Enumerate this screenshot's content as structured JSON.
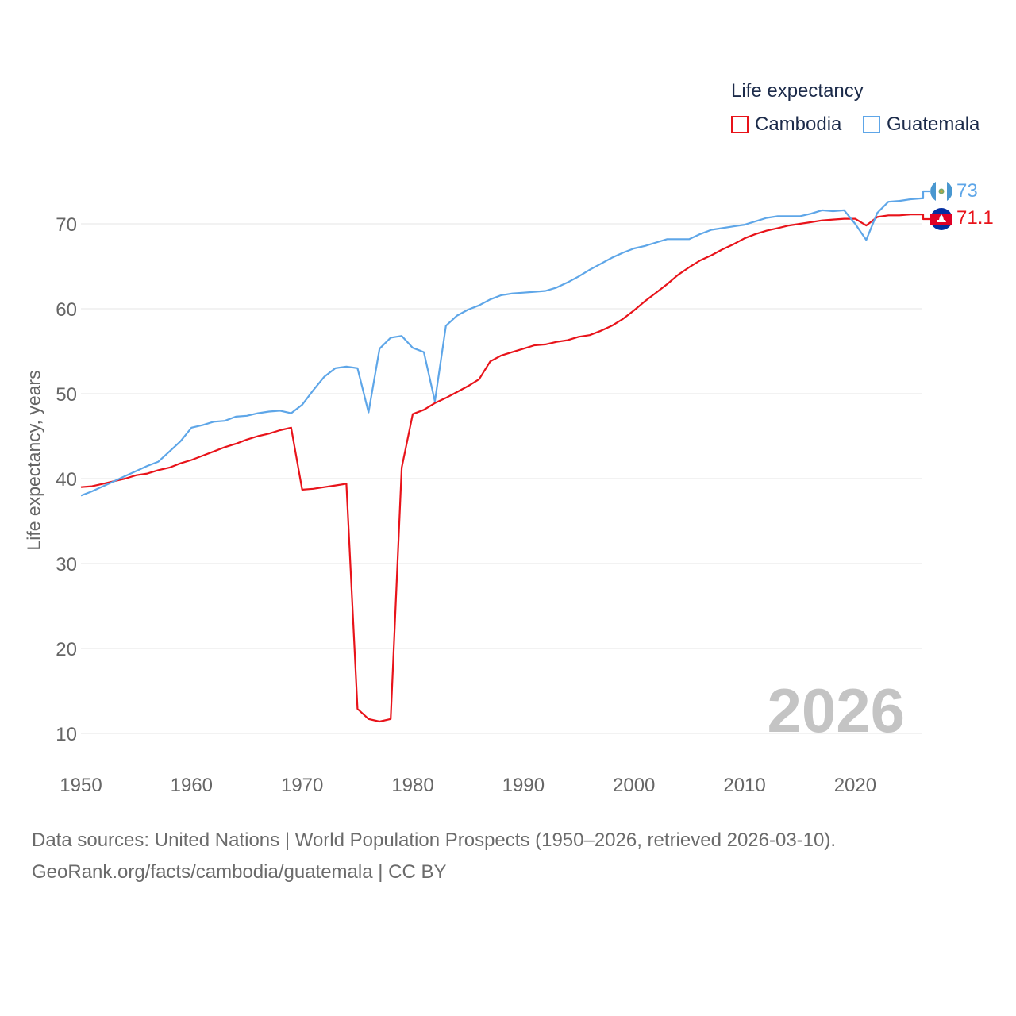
{
  "legend": {
    "title": "Life expectancy",
    "items": [
      {
        "label": "Cambodia",
        "color": "#e8131a"
      },
      {
        "label": "Guatemala",
        "color": "#5ea6e8"
      }
    ]
  },
  "footer": {
    "line1": "Data sources: United Nations | World Population Prospects (1950–2026, retrieved 2026-03-10).",
    "line2": "GeoRank.org/facts/cambodia/guatemala | CC BY"
  },
  "year_display": "2026",
  "end_labels": {
    "cambodia": "71.1",
    "guatemala": "73"
  },
  "chart_data": {
    "type": "line",
    "title": "Life expectancy",
    "xlabel": "",
    "ylabel": "Life expectancy, years",
    "xlim": [
      1950,
      2026
    ],
    "ylim": [
      6,
      76
    ],
    "x_ticks": [
      1950,
      1960,
      1970,
      1980,
      1990,
      2000,
      2010,
      2020
    ],
    "y_ticks": [
      10,
      20,
      30,
      40,
      50,
      60,
      70
    ],
    "x": [
      1950,
      1951,
      1952,
      1953,
      1954,
      1955,
      1956,
      1957,
      1958,
      1959,
      1960,
      1961,
      1962,
      1963,
      1964,
      1965,
      1966,
      1967,
      1968,
      1969,
      1970,
      1971,
      1972,
      1973,
      1974,
      1975,
      1976,
      1977,
      1978,
      1979,
      1980,
      1981,
      1982,
      1983,
      1984,
      1985,
      1986,
      1987,
      1988,
      1989,
      1990,
      1991,
      1992,
      1993,
      1994,
      1995,
      1996,
      1997,
      1998,
      1999,
      2000,
      2001,
      2002,
      2003,
      2004,
      2005,
      2006,
      2007,
      2008,
      2009,
      2010,
      2011,
      2012,
      2013,
      2014,
      2015,
      2016,
      2017,
      2018,
      2019,
      2020,
      2021,
      2022,
      2023,
      2024,
      2025,
      2026
    ],
    "series": [
      {
        "name": "Cambodia",
        "color": "#e8131a",
        "values": [
          39.0,
          39.1,
          39.4,
          39.7,
          40.0,
          40.4,
          40.6,
          41.0,
          41.3,
          41.8,
          42.2,
          42.7,
          43.2,
          43.7,
          44.1,
          44.6,
          45.0,
          45.3,
          45.7,
          46.0,
          38.7,
          38.8,
          39.0,
          39.2,
          39.4,
          12.9,
          11.7,
          11.4,
          11.7,
          41.3,
          47.6,
          48.1,
          48.9,
          49.5,
          50.2,
          50.9,
          51.7,
          53.8,
          54.5,
          54.9,
          55.3,
          55.7,
          55.8,
          56.1,
          56.3,
          56.7,
          56.9,
          57.4,
          58.0,
          58.8,
          59.8,
          60.9,
          61.9,
          62.9,
          64.0,
          64.9,
          65.7,
          66.3,
          67.0,
          67.6,
          68.3,
          68.8,
          69.2,
          69.5,
          69.8,
          70.0,
          70.2,
          70.4,
          70.5,
          70.6,
          70.6,
          69.8,
          70.8,
          71.0,
          71.0,
          71.1,
          71.1
        ]
      },
      {
        "name": "Guatemala",
        "color": "#5ea6e8",
        "values": [
          38.0,
          38.5,
          39.1,
          39.7,
          40.3,
          40.9,
          41.5,
          42.0,
          43.2,
          44.4,
          46.0,
          46.3,
          46.7,
          46.8,
          47.3,
          47.4,
          47.7,
          47.9,
          48.0,
          47.7,
          48.7,
          50.4,
          52.0,
          53.0,
          53.2,
          53.0,
          47.8,
          55.3,
          56.6,
          56.8,
          55.4,
          54.9,
          49.1,
          58.0,
          59.2,
          59.9,
          60.4,
          61.1,
          61.6,
          61.8,
          61.9,
          62.0,
          62.1,
          62.5,
          63.1,
          63.8,
          64.6,
          65.3,
          66.0,
          66.6,
          67.1,
          67.4,
          67.8,
          68.2,
          68.2,
          68.2,
          68.8,
          69.3,
          69.5,
          69.7,
          69.9,
          70.3,
          70.7,
          70.9,
          70.9,
          70.9,
          71.2,
          71.6,
          71.5,
          71.6,
          70.0,
          68.1,
          71.3,
          72.6,
          72.7,
          72.9,
          73.0
        ]
      }
    ]
  }
}
